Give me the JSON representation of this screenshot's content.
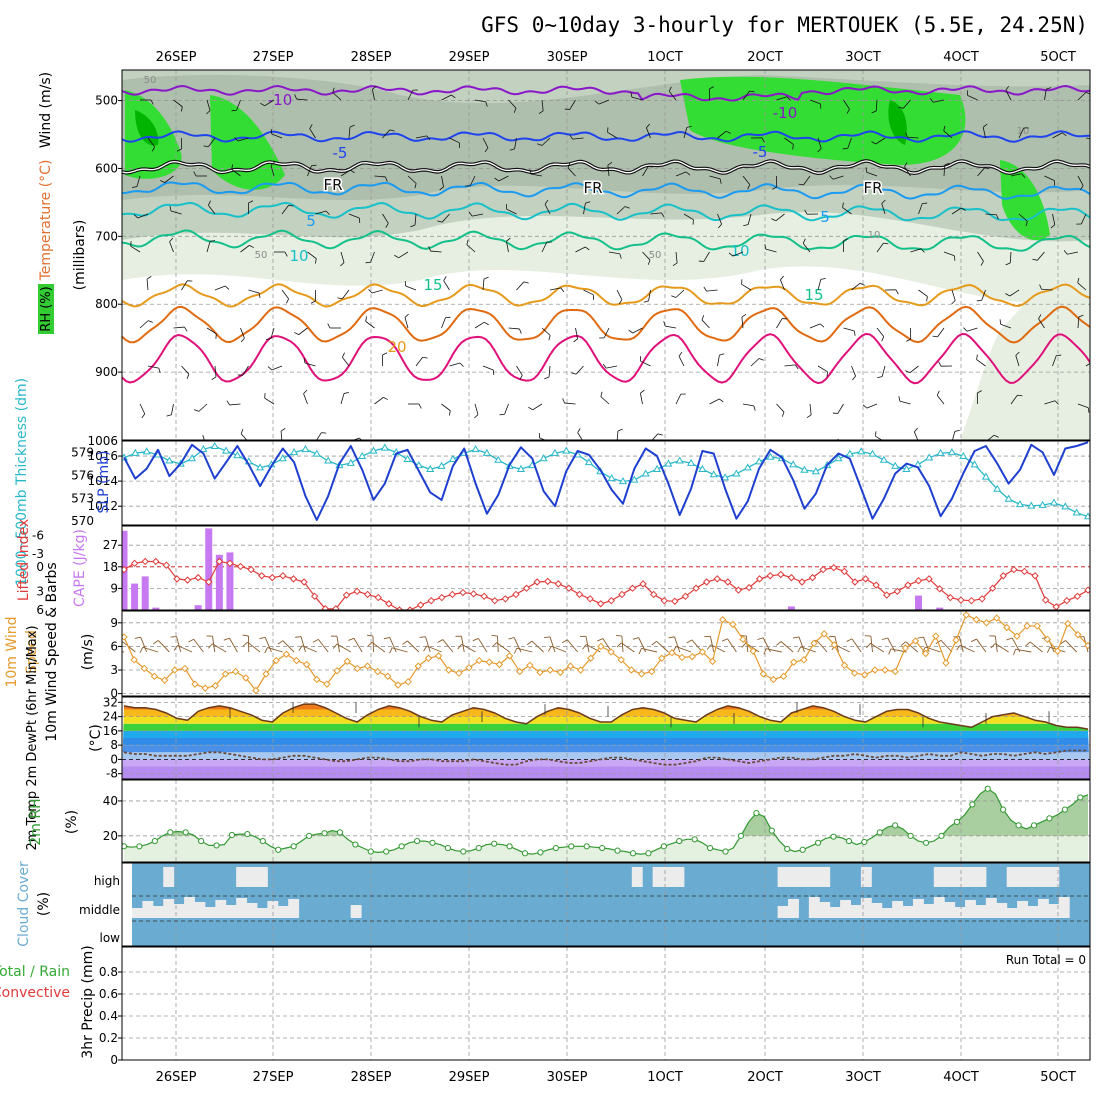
{
  "title": "GFS 0~10day 3-hourly for MERTOUEK (5.5E, 24.25N)",
  "run_total_label": "Run Total = 0",
  "dates": [
    "26SEP",
    "27SEP",
    "28SEP",
    "29SEP",
    "30SEP",
    "1OCT",
    "2OCT",
    "3OCT",
    "4OCT",
    "5OCT"
  ],
  "colors": {
    "rh_light": "#e6efe2",
    "rh_mid": "#c3d1c0",
    "rh_dark": "#9fb09c",
    "rh_green": "#33dd33",
    "rh_bright": "#00ff00",
    "t_m10": "#8a17c9",
    "t_m5": "#1f44ee",
    "t_fr": "#111111",
    "t_5": "#1a9af0",
    "t_10": "#18c0c8",
    "t_15": "#14c08a",
    "t_20": "#e59a1c",
    "t_25": "#e06a10",
    "t_30": "#e0107a",
    "slp": "#1e3fd0",
    "thick": "#28b8c8",
    "li": "#e03a3a",
    "cape": "#c679f1",
    "wind": "#e59a2c",
    "barb": "#8a5a2a",
    "rh2m": "#339933",
    "cloud": "#6aabd2",
    "cloudfill": "#ececec"
  },
  "chart_data": [
    {
      "type": "contour",
      "name": "upper-air",
      "title": "Wind (m/s) / Temperature (°C) / RH (%)",
      "ylabel_parts": [
        "RH (%)",
        "Temperature (°C)",
        "Wind (m/s)",
        "(millibars)"
      ],
      "yticks": [
        500,
        600,
        700,
        800,
        900
      ],
      "ylim": [
        455,
        1000
      ],
      "temperature_levels": [
        "-10",
        "-5",
        "FR",
        "5",
        "10",
        "15",
        "20"
      ],
      "temperature_mb": {
        "-10": 485,
        "-5": 553,
        "FR": 598,
        "5": 628,
        "10": 660,
        "15": 703,
        "20": 787,
        "25": 830,
        "30": 880
      },
      "rh_labels": [
        "50",
        "50",
        "50",
        "10",
        "10"
      ]
    },
    {
      "type": "line",
      "name": "slp-thickness",
      "ylabel_left": "1000~500mb Thickness (dm)",
      "ylabel_right": "SLP (mb)",
      "yticks_left": [
        570,
        573,
        576,
        579
      ],
      "yticks_right": [
        1012,
        1014,
        1016
      ],
      "top_tick": "1006",
      "ylim_slp": [
        1010.5,
        1017.2
      ],
      "ylim_thick": [
        569.5,
        580.5
      ],
      "slp": [
        1015.9,
        1014.2,
        1015.0,
        1016.5,
        1014.4,
        1015.4,
        1016.9,
        1016.2,
        1014.2,
        1015.5,
        1016.8,
        1015.3,
        1013.6,
        1015.2,
        1016.6,
        1015.5,
        1012.8,
        1010.9,
        1012.8,
        1015.4,
        1016.8,
        1014.9,
        1012.5,
        1013.8,
        1016.2,
        1016.5,
        1014.8,
        1013.1,
        1012.5,
        1015.2,
        1016.6,
        1013.8,
        1011.4,
        1012.9,
        1015.3,
        1016.7,
        1015.8,
        1013.2,
        1012.0,
        1014.8,
        1016.4,
        1016.1,
        1014.9,
        1013.3,
        1012.2,
        1015.0,
        1016.6,
        1016.0,
        1013.8,
        1011.3,
        1013.4,
        1016.4,
        1016.2,
        1013.4,
        1011.0,
        1012.4,
        1015.0,
        1016.5,
        1015.9,
        1014.1,
        1011.8,
        1013.0,
        1015.3,
        1016.2,
        1015.8,
        1013.4,
        1011.0,
        1012.6,
        1014.6,
        1015.4,
        1015.1,
        1013.6,
        1011.2,
        1012.6,
        1014.6,
        1016.4,
        1016.8,
        1015.4,
        1013.8,
        1014.9,
        1016.9,
        1016.3,
        1014.5,
        1016.6,
        1016.8,
        1017.1
      ],
      "thickness": [
        578.3,
        578.9,
        579.1,
        578.7,
        577.9,
        577.5,
        578.2,
        579.4,
        579.8,
        579.2,
        578.6,
        577.8,
        577.0,
        577.4,
        578.2,
        579.0,
        579.4,
        578.8,
        577.9,
        577.3,
        577.6,
        578.5,
        579.2,
        579.6,
        579.0,
        578.1,
        577.3,
        576.8,
        577.2,
        578.1,
        578.9,
        579.4,
        578.9,
        578.0,
        577.2,
        576.8,
        577.3,
        578.2,
        578.9,
        579.2,
        578.7,
        577.7,
        576.5,
        575.6,
        575.2,
        575.4,
        576.2,
        576.8,
        577.5,
        577.9,
        577.6,
        576.8,
        576.1,
        575.7,
        576.2,
        577.0,
        577.8,
        578.4,
        578.2,
        577.4,
        576.7,
        576.5,
        577.3,
        578.2,
        578.8,
        579.1,
        578.8,
        578.0,
        577.2,
        576.8,
        577.4,
        578.3,
        578.9,
        579.0,
        578.5,
        577.4,
        575.8,
        574.2,
        572.9,
        572.2,
        572.0,
        572.1,
        572.4,
        571.9,
        571.1,
        570.6
      ]
    },
    {
      "type": "bar+line",
      "name": "cape-lifted-index",
      "ylabel_left": "Lifted Index",
      "ylabel_right": "CAPE (J/kg)",
      "yticks_left": [
        "-6",
        "-3",
        "0",
        "3",
        "6"
      ],
      "yticks_right": [
        9,
        18,
        27
      ],
      "cape_bars": [
        {
          "i": 0,
          "v": 33
        },
        {
          "i": 1,
          "v": 11
        },
        {
          "i": 2,
          "v": 14
        },
        {
          "i": 3,
          "v": 1
        },
        {
          "i": 7,
          "v": 2
        },
        {
          "i": 8,
          "v": 34
        },
        {
          "i": 9,
          "v": 23
        },
        {
          "i": 10,
          "v": 24
        },
        {
          "i": 63,
          "v": 1.5
        },
        {
          "i": 75,
          "v": 6
        },
        {
          "i": 77,
          "v": 1
        }
      ],
      "lifted_index": [
        -0.5,
        -1.5,
        -1.8,
        -1.8,
        -1.2,
        1.0,
        1.2,
        0.8,
        1.5,
        -1.8,
        -1.5,
        -1.0,
        -0.5,
        0.5,
        0.8,
        0.5,
        1.0,
        1.5,
        3.8,
        5.8,
        5.8,
        3.6,
        3.0,
        3.5,
        4.0,
        5.0,
        6.0,
        6.0,
        5.2,
        4.5,
        4.0,
        3.5,
        3.2,
        3.4,
        3.8,
        4.5,
        4.2,
        3.5,
        2.5,
        1.5,
        1.4,
        1.8,
        2.5,
        3.5,
        4.2,
        5.0,
        4.5,
        3.5,
        2.5,
        1.8,
        3.5,
        4.5,
        4.6,
        3.8,
        2.5,
        1.5,
        1.0,
        1.5,
        2.8,
        2.4,
        1.0,
        0.5,
        0.3,
        0.8,
        1.5,
        0.8,
        -0.5,
        -0.8,
        -0.2,
        1.5,
        1.0,
        2.0,
        3.6,
        3.0,
        2.0,
        1.3,
        1.0,
        2.6,
        4.0,
        4.4,
        4.5,
        4.2,
        2.5,
        0.5,
        -0.5,
        -0.2,
        0.5,
        4.4,
        5.5,
        4.5,
        3.8,
        2.8
      ]
    },
    {
      "type": "line",
      "name": "10m-wind",
      "ylabel": "10m Wind Speed & Barbs",
      "yunit": "(m/s)",
      "yticks": [
        0,
        3,
        6,
        9
      ],
      "ylim": [
        -0.3,
        10.5
      ],
      "speed": [
        7.2,
        4.3,
        3.2,
        2.2,
        1.7,
        3.0,
        3.2,
        1.2,
        0.7,
        1.0,
        2.5,
        2.8,
        2.0,
        0.4,
        2.5,
        4.2,
        5.0,
        4.2,
        3.7,
        1.8,
        1.2,
        2.9,
        4.1,
        3.2,
        3.5,
        2.8,
        2.2,
        1.1,
        1.5,
        3.5,
        4.5,
        4.8,
        3.0,
        2.6,
        3.3,
        4.2,
        4.0,
        3.7,
        4.8,
        2.8,
        3.6,
        2.7,
        3.0,
        2.7,
        3.5,
        3.0,
        4.5,
        6.0,
        5.3,
        4.3,
        3.0,
        2.5,
        2.8,
        4.5,
        5.2,
        4.6,
        4.7,
        5.3,
        4.1,
        9.4,
        8.8,
        6.9,
        5.4,
        2.5,
        1.8,
        2.2,
        4.0,
        4.3,
        6.4,
        7.6,
        6.2,
        3.6,
        2.6,
        2.4,
        3.0,
        3.0,
        2.8,
        5.8,
        6.7,
        5.1,
        7.3,
        3.9,
        6.8,
        10.0,
        9.4,
        9.0,
        9.6,
        8.4,
        7.3,
        8.6,
        8.6,
        6.9,
        5.4,
        8.9,
        7.5,
        6.1
      ]
    },
    {
      "type": "area",
      "name": "2m-temp",
      "ylabel": "2m Temp 2m DewPt (6hr Min/Max)",
      "yunit": "(°C)",
      "yticks": [
        -8,
        0,
        8,
        16,
        24,
        32
      ],
      "ylim": [
        -11,
        35
      ],
      "temp": [
        30,
        29,
        29,
        28,
        26,
        23,
        22,
        27,
        29,
        30,
        29,
        27,
        25,
        22,
        21,
        26,
        29,
        31,
        31,
        29,
        26,
        23,
        21,
        25,
        28,
        30,
        29,
        27,
        24,
        22,
        21,
        25,
        27,
        29,
        28,
        26,
        23,
        21,
        20,
        24,
        27,
        29,
        28,
        26,
        23,
        21,
        21,
        25,
        28,
        29,
        28,
        26,
        23,
        22,
        21,
        25,
        28,
        30,
        29,
        27,
        24,
        22,
        21,
        26,
        28,
        30,
        29,
        27,
        24,
        22,
        21,
        24,
        27,
        28,
        28,
        26,
        23,
        21,
        20,
        19,
        18,
        21,
        24,
        25,
        26,
        24,
        22,
        21,
        19,
        18,
        18,
        17
      ],
      "dewpoint": [
        4,
        3,
        3,
        2,
        2,
        2,
        2,
        3,
        4,
        4,
        3,
        2,
        1,
        0,
        0,
        1,
        2,
        2,
        1,
        0,
        -1,
        -1,
        0,
        1,
        1,
        0,
        -1,
        -1,
        0,
        0,
        -1,
        -1,
        -1,
        0,
        -1,
        -2,
        -3,
        -3,
        -1,
        0,
        0,
        -1,
        -2,
        -2,
        -1,
        0,
        1,
        1,
        0,
        -1,
        -2,
        -3,
        -3,
        -2,
        -1,
        1,
        1,
        0,
        -1,
        -2,
        -1,
        0,
        1,
        1,
        0,
        0,
        1,
        2,
        2,
        3,
        2,
        1,
        2,
        2,
        1,
        2,
        3,
        2,
        2,
        4,
        3,
        2,
        3,
        3,
        2,
        3,
        4,
        3,
        4,
        5,
        5,
        5
      ]
    },
    {
      "type": "area",
      "name": "2m-rh",
      "ylabel": "2m RH",
      "yunit": "(%)",
      "yticks": [
        20,
        40
      ],
      "ylim": [
        5,
        52
      ],
      "rh": [
        14,
        13.5,
        14,
        15,
        17,
        20,
        22,
        22.5,
        22,
        20.5,
        17,
        14.5,
        14.5,
        15,
        20.5,
        21,
        21,
        19.5,
        17,
        14,
        12,
        13,
        14,
        17,
        20,
        21,
        21.5,
        23,
        22,
        18,
        15,
        13,
        11,
        10.5,
        11,
        12,
        14,
        16,
        17,
        17,
        16,
        15,
        13,
        11.5,
        11,
        11.5,
        13,
        15,
        15.5,
        15,
        14,
        12,
        10,
        9.5,
        10.5,
        12,
        13,
        13.5,
        14,
        14,
        14,
        13.5,
        13,
        12.5,
        11.5,
        11,
        10,
        9.5,
        10,
        12,
        14,
        15.5,
        17,
        18,
        18,
        16,
        13,
        12,
        11,
        13,
        20,
        28,
        33,
        31,
        23,
        17,
        12.5,
        11,
        12,
        14,
        16,
        18.5,
        19.5,
        19,
        17,
        15,
        16.5,
        19,
        22,
        25,
        26,
        24,
        20,
        17,
        16,
        17,
        20,
        25,
        28,
        32,
        38,
        44,
        47,
        44,
        35,
        29,
        26,
        24,
        26,
        28,
        30,
        32,
        35,
        38,
        42,
        43.5
      ]
    },
    {
      "type": "area",
      "name": "cloud-cover",
      "ylabel": "Cloud Cover",
      "yunit": "(%)",
      "categories": [
        "high",
        "middle",
        "low"
      ],
      "high_idx": [
        3,
        10,
        11,
        12,
        48,
        50,
        51,
        52,
        62,
        63,
        64,
        65,
        66,
        70,
        77,
        78,
        79,
        80,
        81,
        84,
        85,
        86,
        87,
        88
      ],
      "middle_idx": [
        0,
        1,
        2,
        3,
        4,
        5,
        6,
        7,
        8,
        9,
        10,
        11,
        12,
        13,
        14,
        15,
        21,
        62,
        63,
        65,
        66,
        67,
        68,
        69,
        70,
        71,
        72,
        73,
        74,
        75,
        76,
        77,
        78,
        79,
        80,
        81,
        82,
        83,
        84,
        85,
        86,
        87,
        88,
        89
      ]
    },
    {
      "type": "line",
      "name": "3hr-precip",
      "ylabel_left": "Total / Rain",
      "ylabel_right": "Convective",
      "ylabel_axis": "3hr Precip (mm)",
      "yticks": [
        "0",
        "0.2",
        "0.4",
        "0.6",
        "0.8"
      ],
      "ylim": [
        0,
        1
      ],
      "values": []
    }
  ]
}
